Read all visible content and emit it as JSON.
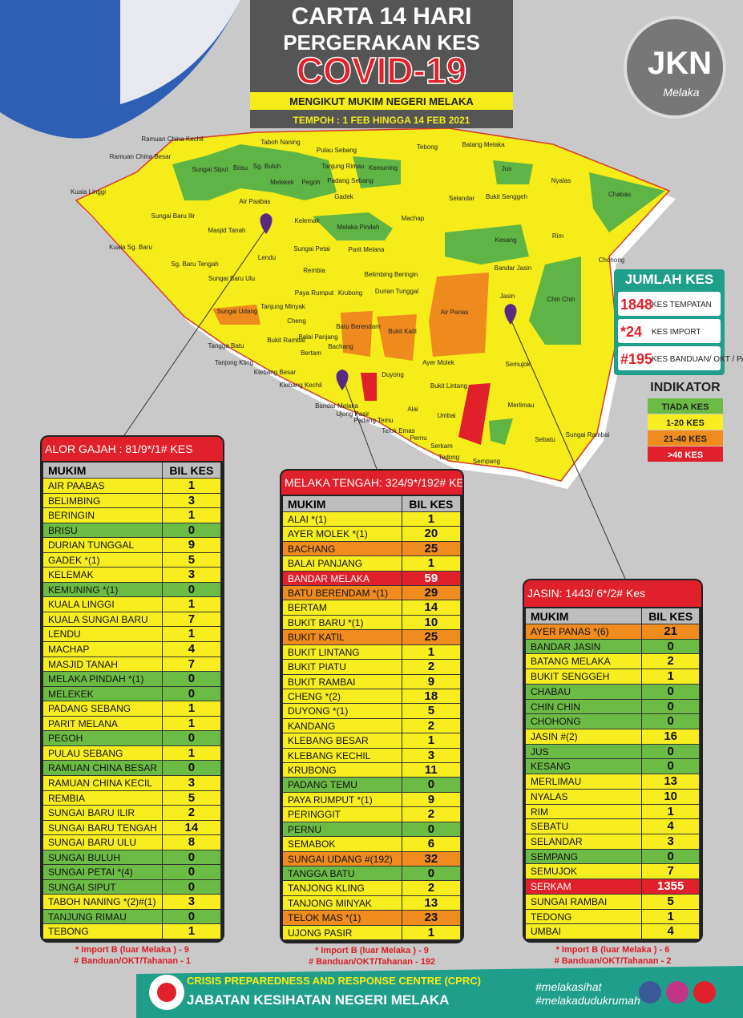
{
  "header": {
    "line1": "CARTA 14 HARI",
    "line2": "PERGERAKAN KES",
    "line3": "COVID-19",
    "subtitle": "MENGIKUT MUKIM NEGERI MELAKA",
    "period": "TEMPOH : 1 FEB HINGGA 14 FEB  2021"
  },
  "logo": {
    "text": "JKN",
    "sub": "Melaka"
  },
  "map": {
    "labels": [
      "Ramuan China Kechil",
      "Ramuan China Besar",
      "Kuala Linggi",
      "Taboh Naning",
      "Pulau Sebang",
      "Tebong",
      "Batang Melaka",
      "Sungai Siput",
      "Brisu",
      "Sg. Buluh",
      "Melekek",
      "Pegoh",
      "Tanjung Rimau",
      "Padang Sebang",
      "Kemuning",
      "Jus",
      "Nyalas",
      "Chabau",
      "Selandar",
      "Bukit Senggeh",
      "Gadek",
      "Air Paabas",
      "Sungai Baru Ilir",
      "Masjid Tanah",
      "Kelemak",
      "Machap",
      "Melaka Pindah",
      "Rim",
      "Kuala Sg. Baru",
      "Sg. Baru Tengah",
      "Lendu",
      "Sungai Petai",
      "Parit Melana",
      "Kesang",
      "Chohong",
      "Sungai Baru Ulu",
      "Rembia",
      "Belimbing Beringin",
      "Bandar Jasin",
      "Durian Tunggal",
      "Chin Chin",
      "Jasin",
      "Sungai Udang",
      "Tanjung Minyak",
      "Paya Rumput",
      "Krubong",
      "Air Panas",
      "Cheng",
      "Batu Berendam",
      "Bukit Katil",
      "Balai Panjang",
      "Tangga Batu",
      "Bukit Rambai",
      "Bachang",
      "Bertam",
      "Semujok",
      "Tanjong Kling",
      "Ayer Molek",
      "Klebang Besar",
      "Duyong",
      "Klebang Kechil",
      "Bukit Lintang",
      "Merlimau",
      "Bandar Melaka",
      "Ujong Pasir",
      "Padang Temu",
      "Alai",
      "Umbai",
      "Telok Emas",
      "Sungai Rambai",
      "Pernu",
      "Sebatu",
      "Serkam",
      "Tedong",
      "Sempang"
    ]
  },
  "totals": {
    "title": "JUMLAH KES",
    "items": [
      {
        "value": "1848",
        "label": "KES TEMPATAN"
      },
      {
        "value": "*24",
        "label": "KES IMPORT"
      },
      {
        "value": "#195",
        "label": "KES BANDUAN/ OKT / PATI"
      }
    ]
  },
  "indicator": {
    "title": "INDIKATOR",
    "items": [
      {
        "label": "TIADA KES",
        "level": "g"
      },
      {
        "label": "1-20  KES",
        "level": "y"
      },
      {
        "label": "21-40  KES",
        "level": "o"
      },
      {
        "label": ">40  KES",
        "level": "r"
      }
    ]
  },
  "tables": [
    {
      "title": "ALOR GAJAH : 81/9*/1# KES",
      "columns": [
        "MUKIM",
        "BIL KES"
      ],
      "rows": [
        [
          "AIR PAABAS",
          1,
          "y"
        ],
        [
          "BELIMBING",
          3,
          "y"
        ],
        [
          "BERINGIN",
          1,
          "y"
        ],
        [
          "BRISU",
          0,
          "g"
        ],
        [
          "DURIAN TUNGGAL",
          9,
          "y"
        ],
        [
          "GADEK *(1)",
          5,
          "y"
        ],
        [
          "KELEMAK",
          3,
          "y"
        ],
        [
          "KEMUNING *(1)",
          0,
          "g"
        ],
        [
          "KUALA LINGGI",
          1,
          "y"
        ],
        [
          "KUALA SUNGAI BARU",
          7,
          "y"
        ],
        [
          "LENDU",
          1,
          "y"
        ],
        [
          "MACHAP",
          4,
          "y"
        ],
        [
          "MASJID TANAH",
          7,
          "y"
        ],
        [
          "MELAKA PINDAH *(1)",
          0,
          "g"
        ],
        [
          "MELEKEK",
          0,
          "g"
        ],
        [
          "PADANG SEBANG",
          1,
          "y"
        ],
        [
          "PARIT MELANA",
          1,
          "y"
        ],
        [
          "PEGOH",
          0,
          "g"
        ],
        [
          "PULAU SEBANG",
          1,
          "y"
        ],
        [
          "RAMUAN CHINA BESAR",
          0,
          "g"
        ],
        [
          "RAMUAN CHINA KECIL",
          3,
          "y"
        ],
        [
          "REMBIA",
          5,
          "y"
        ],
        [
          "SUNGAI BARU ILIR",
          2,
          "y"
        ],
        [
          "SUNGAI BARU TENGAH",
          14,
          "y"
        ],
        [
          "SUNGAI BARU ULU",
          8,
          "y"
        ],
        [
          "SUNGAI BULUH",
          0,
          "g"
        ],
        [
          "SUNGAI PETAI *(4)",
          0,
          "g"
        ],
        [
          "SUNGAI SIPUT",
          0,
          "g"
        ],
        [
          "TABOH NANING *(2)#(1)",
          3,
          "y"
        ],
        [
          "TANJUNG RIMAU",
          0,
          "g"
        ],
        [
          "TEBONG",
          1,
          "y"
        ]
      ],
      "notes": [
        "* Import B (luar Melaka ) - 9",
        "# Banduan/OKT/Tahanan - 1"
      ]
    },
    {
      "title": "MELAKA TENGAH: 324/9*/192# KES",
      "columns": [
        "MUKIM",
        "BIL KES"
      ],
      "rows": [
        [
          "ALAI *(1)",
          1,
          "y"
        ],
        [
          "AYER MOLEK *(1)",
          20,
          "y"
        ],
        [
          "BACHANG",
          25,
          "o"
        ],
        [
          "BALAI PANJANG",
          1,
          "y"
        ],
        [
          "BANDAR MELAKA",
          59,
          "r"
        ],
        [
          "BATU BERENDAM *(1)",
          29,
          "o"
        ],
        [
          "BERTAM",
          14,
          "y"
        ],
        [
          "BUKIT BARU *(1)",
          10,
          "y"
        ],
        [
          "BUKIT KATIL",
          25,
          "o"
        ],
        [
          "BUKIT LINTANG",
          1,
          "y"
        ],
        [
          "BUKIT PIATU",
          2,
          "y"
        ],
        [
          "BUKIT RAMBAI",
          9,
          "y"
        ],
        [
          "CHENG *(2)",
          18,
          "y"
        ],
        [
          "DUYONG *(1)",
          5,
          "y"
        ],
        [
          "KANDANG",
          2,
          "y"
        ],
        [
          "KLEBANG BESAR",
          1,
          "y"
        ],
        [
          "KLEBANG KECHIL",
          3,
          "y"
        ],
        [
          "KRUBONG",
          11,
          "y"
        ],
        [
          "PADANG TEMU",
          0,
          "g"
        ],
        [
          "PAYA RUMPUT *(1)",
          9,
          "y"
        ],
        [
          "PERINGGIT",
          2,
          "y"
        ],
        [
          "PERNU",
          0,
          "g"
        ],
        [
          "SEMABOK",
          6,
          "y"
        ],
        [
          "SUNGAI UDANG #(192)",
          32,
          "o"
        ],
        [
          "TANGGA BATU",
          0,
          "g"
        ],
        [
          "TANJONG KLING",
          2,
          "y"
        ],
        [
          "TANJONG MINYAK",
          13,
          "y"
        ],
        [
          "TELOK MAS *(1)",
          23,
          "o"
        ],
        [
          "UJONG PASIR",
          1,
          "y"
        ]
      ],
      "notes": [
        "* Import B (luar Melaka ) - 9",
        "# Banduan/OKT/Tahanan - 192"
      ]
    },
    {
      "title": "JASIN:  1443/ 6*/2# Kes",
      "columns": [
        "MUKIM",
        "BIL KES"
      ],
      "rows": [
        [
          "AYER PANAS *(6)",
          21,
          "o"
        ],
        [
          "BANDAR JASIN",
          0,
          "g"
        ],
        [
          "BATANG MELAKA",
          2,
          "y"
        ],
        [
          "BUKIT SENGGEH",
          1,
          "y"
        ],
        [
          "CHABAU",
          0,
          "g"
        ],
        [
          "CHIN CHIN",
          0,
          "g"
        ],
        [
          "CHOHONG",
          0,
          "g"
        ],
        [
          "JASIN #(2)",
          16,
          "y"
        ],
        [
          "JUS",
          0,
          "g"
        ],
        [
          "KESANG",
          0,
          "g"
        ],
        [
          "MERLIMAU",
          13,
          "y"
        ],
        [
          "NYALAS",
          10,
          "y"
        ],
        [
          "RIM",
          1,
          "y"
        ],
        [
          "SEBATU",
          4,
          "y"
        ],
        [
          "SELANDAR",
          3,
          "y"
        ],
        [
          "SEMPANG",
          0,
          "g"
        ],
        [
          "SEMUJOK",
          7,
          "y"
        ],
        [
          "SERKAM",
          1355,
          "r"
        ],
        [
          "SUNGAI RAMBAI",
          5,
          "y"
        ],
        [
          "TEDONG",
          1,
          "y"
        ],
        [
          "UMBAI",
          4,
          "y"
        ]
      ],
      "notes": [
        "* Import B (luar Melaka ) - 6",
        "# Banduan/OKT/Tahanan - 2"
      ]
    }
  ],
  "footer": {
    "org1": "CRISIS PREPAREDNESS AND RESPONSE CENTRE (CPRC)",
    "org2": "JABATAN KESIHATAN NEGERI MELAKA",
    "tag1": "#melakasihat",
    "tag2": "#melakadudukrumah"
  }
}
